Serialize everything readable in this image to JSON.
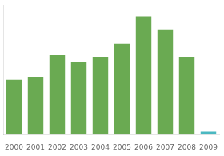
{
  "chart_data": {
    "type": "bar",
    "categories": [
      "2000",
      "2001",
      "2002",
      "2003",
      "2004",
      "2005",
      "2006",
      "2007",
      "2008",
      "2009"
    ],
    "values": [
      38,
      40,
      55,
      50,
      54,
      63,
      82,
      73,
      54,
      2
    ],
    "colors": [
      "#6aaa52",
      "#6aaa52",
      "#6aaa52",
      "#6aaa52",
      "#6aaa52",
      "#6aaa52",
      "#6aaa52",
      "#6aaa52",
      "#6aaa52",
      "#4ab8c1"
    ],
    "ylim": [
      0,
      90
    ],
    "grid": false,
    "tick_labels": "x"
  }
}
